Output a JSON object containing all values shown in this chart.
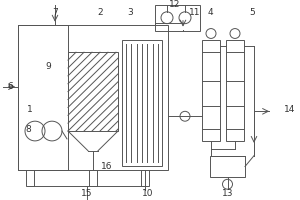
{
  "bg_color": "#ffffff",
  "line_color": "#555555",
  "label_color": "#333333",
  "lw": 0.7,
  "fs": 6.5
}
